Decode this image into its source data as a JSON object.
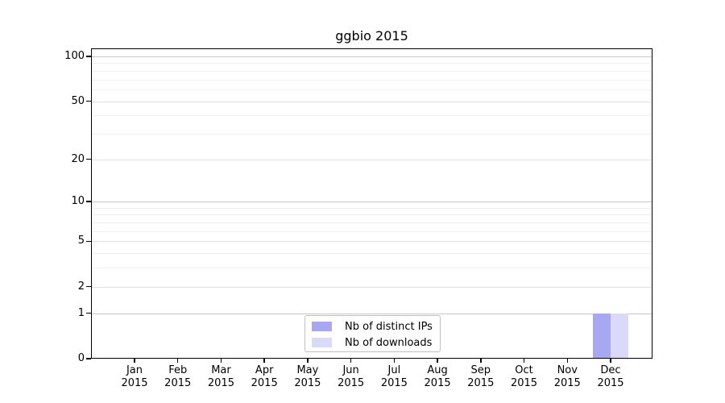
{
  "title": "ggbio 2015",
  "legend": {
    "items": [
      {
        "label": "Nb of distinct IPs",
        "color": "#a8a8f2"
      },
      {
        "label": "Nb of downloads",
        "color": "#dadaf8"
      }
    ]
  },
  "chart_data": {
    "type": "bar",
    "title": "ggbio 2015",
    "categories": [
      "Jan 2015",
      "Feb 2015",
      "Mar 2015",
      "Apr 2015",
      "May 2015",
      "Jun 2015",
      "Jul 2015",
      "Aug 2015",
      "Sep 2015",
      "Oct 2015",
      "Nov 2015",
      "Dec 2015"
    ],
    "series": [
      {
        "name": "Nb of distinct IPs",
        "color": "#a8a8f2",
        "values": [
          0,
          0,
          0,
          0,
          0,
          0,
          0,
          0,
          0,
          0,
          0,
          1
        ]
      },
      {
        "name": "Nb of downloads",
        "color": "#dadaf8",
        "values": [
          0,
          0,
          0,
          0,
          0,
          0,
          0,
          0,
          0,
          0,
          0,
          1
        ]
      }
    ],
    "xlabel": "",
    "ylabel": "",
    "y_scale": "log1p",
    "ylim": [
      0,
      113
    ],
    "y_major_ticks": [
      0,
      1,
      2,
      5,
      10,
      20,
      50,
      100
    ],
    "y_minor_gridlines": [
      3,
      4,
      6,
      7,
      8,
      9,
      30,
      40,
      60,
      70,
      80,
      90
    ],
    "grid": true,
    "legend_position": "bottom-center"
  },
  "colors": {
    "grid_power10": "#c6c6c6",
    "grid_labeled": "#e1e1e1",
    "grid_minor": "#efefef",
    "axis": "#000000",
    "legend_border": "#c0c0c0",
    "background": "#ffffff"
  }
}
